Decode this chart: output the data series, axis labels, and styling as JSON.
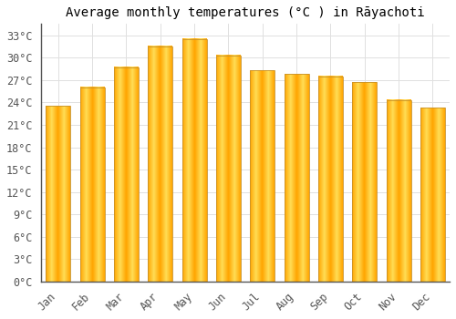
{
  "title": "Average monthly temperatures (°C ) in Rāyachoti",
  "months": [
    "Jan",
    "Feb",
    "Mar",
    "Apr",
    "May",
    "Jun",
    "Jul",
    "Aug",
    "Sep",
    "Oct",
    "Nov",
    "Dec"
  ],
  "values": [
    23.5,
    26.0,
    28.7,
    31.5,
    32.5,
    30.3,
    28.3,
    27.8,
    27.5,
    26.7,
    24.3,
    23.3
  ],
  "bar_color_center": "#FFD966",
  "bar_color_edge": "#FFA500",
  "background_color": "#FFFFFF",
  "grid_color": "#E0E0E0",
  "ytick_values": [
    0,
    3,
    6,
    9,
    12,
    15,
    18,
    21,
    24,
    27,
    30,
    33
  ],
  "ylim": [
    0,
    34.5
  ],
  "title_fontsize": 10,
  "tick_fontsize": 8.5,
  "spine_color": "#555555"
}
